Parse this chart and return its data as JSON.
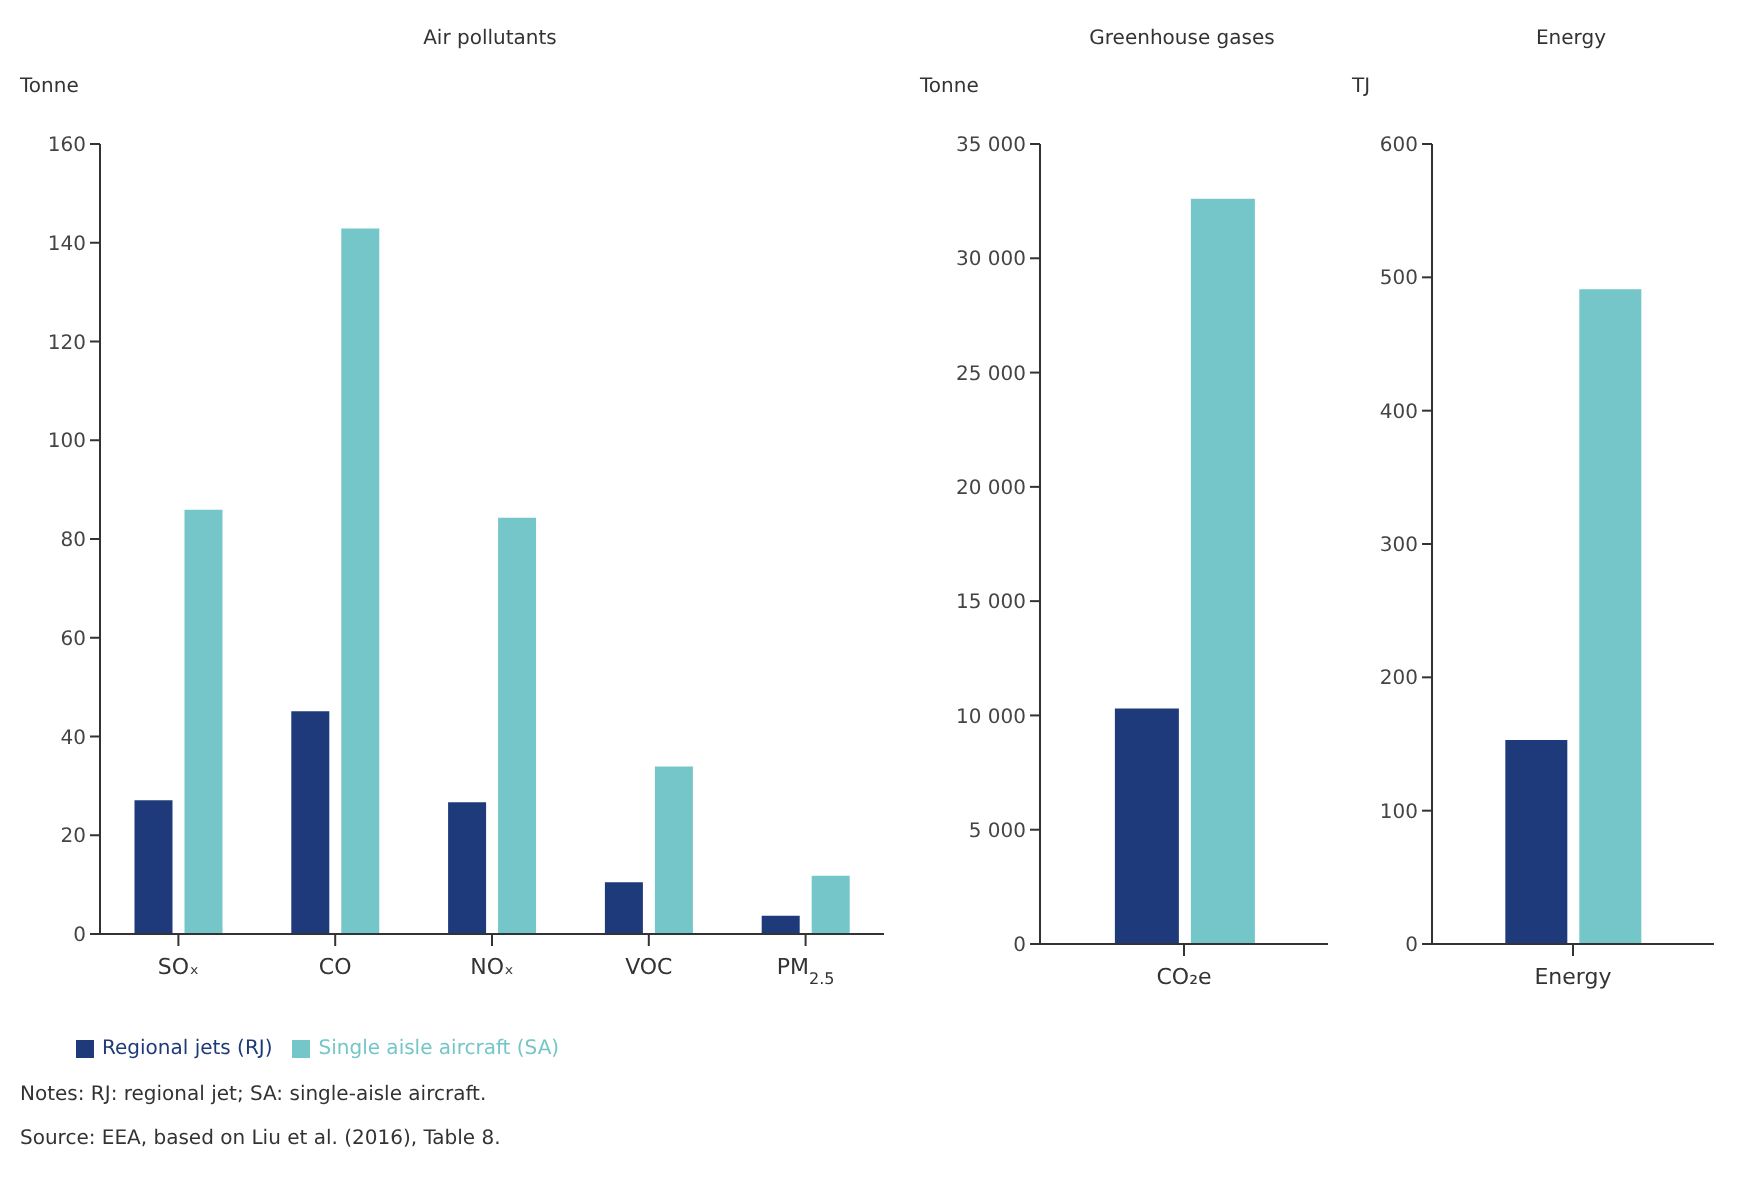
{
  "chart_data": [
    {
      "type": "bar",
      "title": "Air pollutants",
      "ylabel": "Tonne",
      "categories": [
        "SOₓ",
        "CO",
        "NOₓ",
        "VOC",
        "PM$_{2.5}$"
      ],
      "series": [
        {
          "name": "Regional jets (RJ)",
          "color": "#1f3a7a",
          "values": [
            27.1,
            45.1,
            26.7,
            10.5,
            3.7
          ]
        },
        {
          "name": "Single aisle aircraft (SA)",
          "color": "#74c6c8",
          "values": [
            85.9,
            142.9,
            84.3,
            33.9,
            11.8
          ]
        }
      ],
      "ylim": [
        0,
        160
      ],
      "yticks": [
        0,
        20,
        40,
        60,
        80,
        100,
        120,
        140,
        160
      ],
      "legend": "bottom",
      "annotations": [
        "Notes:  RJ: regional jet; SA: single-aisle aircraft.",
        "Source:  EEA, based on Liu et al. (2016), Table 8."
      ]
    },
    {
      "type": "bar",
      "title": "Greenhouse gases",
      "ylabel": "Tonne",
      "categories": [
        "CO₂e"
      ],
      "series": [
        {
          "color": "#1f3a7a",
          "values": [
            10300
          ]
        },
        {
          "color": "#74c6c8",
          "values": [
            32600
          ]
        }
      ],
      "ylim": [
        0,
        35000
      ],
      "yticks": [
        0,
        {
          "value": 5000,
          "label": "5 000"
        },
        {
          "value": 10000,
          "label": "10 000"
        },
        {
          "value": 15000,
          "label": "15 000"
        },
        {
          "value": 20000,
          "label": "20 000"
        },
        {
          "value": 25000,
          "label": "25 000"
        },
        {
          "value": 30000,
          "label": "30 000"
        },
        {
          "value": 35000,
          "label": "35 000"
        }
      ]
    },
    {
      "type": "bar",
      "title": "Energy",
      "ylabel": "TJ",
      "categories": [
        "Energy"
      ],
      "series": [
        {
          "color": "#1f3a7a",
          "values": [
            153
          ]
        },
        {
          "color": "#74c6c8",
          "values": [
            491
          ]
        }
      ],
      "ylim": [
        0,
        600
      ],
      "yticks": [
        0,
        100,
        200,
        300,
        400,
        500,
        600
      ]
    }
  ]
}
